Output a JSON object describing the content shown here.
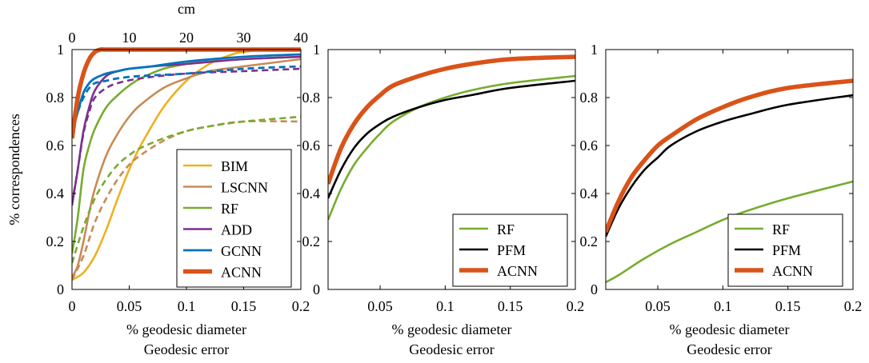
{
  "chart_data": [
    {
      "type": "line",
      "title": "",
      "xlabel": "% geodesic diameter",
      "xlabel2": "Geodesic error",
      "ylabel": "% correspondences",
      "top_axis_label": "cm",
      "top_axis_ticks": [
        "0",
        "10",
        "20",
        "30",
        "40"
      ],
      "top_axis_range": [
        0,
        40
      ],
      "xlim": [
        0,
        0.2
      ],
      "ylim": [
        0,
        1
      ],
      "x_ticks": [
        "0",
        "0.05",
        "0.1",
        "0.15",
        "0.2"
      ],
      "y_ticks": [
        "0",
        "0.2",
        "0.4",
        "0.6",
        "0.8",
        "1"
      ],
      "legend_position": "bottom-right",
      "legend": [
        "BIM",
        "LSCNN",
        "RF",
        "ADD",
        "GCNN",
        "ACNN"
      ],
      "series": [
        {
          "name": "BIM",
          "color": "#EDB120",
          "dashed": false,
          "width": 2.6,
          "x": [
            0,
            0.01,
            0.02,
            0.03,
            0.04,
            0.05,
            0.06,
            0.08,
            0.1,
            0.12,
            0.14,
            0.15,
            0.17,
            0.2
          ],
          "y": [
            0.04,
            0.07,
            0.14,
            0.25,
            0.38,
            0.5,
            0.6,
            0.76,
            0.87,
            0.94,
            0.98,
            0.99,
            1.0,
            1.0
          ]
        },
        {
          "name": "LSCNN",
          "color": "#C88A55",
          "dashed": false,
          "width": 2.6,
          "x": [
            0,
            0.005,
            0.01,
            0.015,
            0.02,
            0.03,
            0.04,
            0.05,
            0.06,
            0.08,
            0.1,
            0.12,
            0.15,
            0.2
          ],
          "y": [
            0.05,
            0.1,
            0.2,
            0.32,
            0.42,
            0.56,
            0.65,
            0.72,
            0.77,
            0.84,
            0.88,
            0.91,
            0.93,
            0.96
          ]
        },
        {
          "name": "LSCNN (dashed)",
          "color": "#C88A55",
          "dashed": true,
          "width": 2.6,
          "x": [
            0,
            0.01,
            0.02,
            0.03,
            0.04,
            0.05,
            0.06,
            0.08,
            0.1,
            0.12,
            0.15,
            0.2
          ],
          "y": [
            0.04,
            0.14,
            0.28,
            0.38,
            0.46,
            0.52,
            0.56,
            0.62,
            0.66,
            0.68,
            0.7,
            0.7
          ]
        },
        {
          "name": "RF",
          "color": "#77AC30",
          "dashed": false,
          "width": 2.6,
          "x": [
            0,
            0.005,
            0.01,
            0.015,
            0.02,
            0.03,
            0.04,
            0.05,
            0.06,
            0.08,
            0.1,
            0.12,
            0.15,
            0.2
          ],
          "y": [
            0.15,
            0.3,
            0.5,
            0.6,
            0.67,
            0.76,
            0.81,
            0.85,
            0.88,
            0.92,
            0.94,
            0.95,
            0.96,
            0.97
          ]
        },
        {
          "name": "RF (dashed)",
          "color": "#77AC30",
          "dashed": true,
          "width": 2.6,
          "x": [
            0,
            0.01,
            0.02,
            0.03,
            0.04,
            0.05,
            0.06,
            0.08,
            0.1,
            0.12,
            0.15,
            0.2
          ],
          "y": [
            0.11,
            0.26,
            0.38,
            0.46,
            0.52,
            0.56,
            0.59,
            0.63,
            0.66,
            0.68,
            0.7,
            0.72
          ]
        },
        {
          "name": "ADD",
          "color": "#7E2F8E",
          "dashed": false,
          "width": 2.6,
          "x": [
            0,
            0.005,
            0.01,
            0.015,
            0.02,
            0.03,
            0.04,
            0.05,
            0.07,
            0.1,
            0.15,
            0.2
          ],
          "y": [
            0.35,
            0.5,
            0.66,
            0.76,
            0.83,
            0.89,
            0.91,
            0.92,
            0.93,
            0.94,
            0.96,
            0.97
          ]
        },
        {
          "name": "ADD (dashed)",
          "color": "#7E2F8E",
          "dashed": true,
          "width": 2.6,
          "x": [
            0,
            0.005,
            0.01,
            0.015,
            0.02,
            0.03,
            0.04,
            0.06,
            0.1,
            0.15,
            0.2
          ],
          "y": [
            0.36,
            0.5,
            0.65,
            0.74,
            0.8,
            0.84,
            0.86,
            0.88,
            0.9,
            0.91,
            0.92
          ]
        },
        {
          "name": "GCNN",
          "color": "#0072BD",
          "dashed": false,
          "width": 2.8,
          "x": [
            0,
            0.005,
            0.01,
            0.015,
            0.02,
            0.03,
            0.04,
            0.05,
            0.07,
            0.1,
            0.15,
            0.2
          ],
          "y": [
            0.65,
            0.74,
            0.82,
            0.86,
            0.88,
            0.9,
            0.91,
            0.92,
            0.93,
            0.95,
            0.97,
            0.98
          ]
        },
        {
          "name": "GCNN (dashed)",
          "color": "#0072BD",
          "dashed": true,
          "width": 2.8,
          "x": [
            0,
            0.005,
            0.01,
            0.015,
            0.02,
            0.03,
            0.04,
            0.06,
            0.1,
            0.15,
            0.2
          ],
          "y": [
            0.66,
            0.74,
            0.8,
            0.84,
            0.86,
            0.87,
            0.88,
            0.89,
            0.9,
            0.92,
            0.93
          ]
        },
        {
          "name": "ACNN",
          "color": "#D95319",
          "dashed": false,
          "width": 5.5,
          "x": [
            0,
            0.005,
            0.01,
            0.015,
            0.02,
            0.025,
            0.03,
            0.05,
            0.1,
            0.2
          ],
          "y": [
            0.63,
            0.8,
            0.9,
            0.96,
            0.99,
            1.0,
            1.0,
            1.0,
            1.0,
            1.0
          ]
        }
      ]
    },
    {
      "type": "line",
      "title": "",
      "xlabel": "% geodesic diameter",
      "xlabel2": "Geodesic error",
      "ylabel": "",
      "xlim": [
        0.01,
        0.2
      ],
      "ylim": [
        0,
        1
      ],
      "x_ticks": [
        "0.05",
        "0.1",
        "0.15",
        "0.2"
      ],
      "y_ticks": [
        "0",
        "0.2",
        "0.4",
        "0.6",
        "0.8",
        "1"
      ],
      "legend_position": "bottom-right",
      "legend": [
        "RF",
        "PFM",
        "ACNN"
      ],
      "series": [
        {
          "name": "RF",
          "color": "#77AC30",
          "dashed": false,
          "width": 2.6,
          "x": [
            0.01,
            0.02,
            0.03,
            0.04,
            0.05,
            0.06,
            0.08,
            0.1,
            0.12,
            0.15,
            0.2
          ],
          "y": [
            0.29,
            0.42,
            0.52,
            0.59,
            0.65,
            0.7,
            0.76,
            0.8,
            0.83,
            0.86,
            0.89
          ]
        },
        {
          "name": "PFM",
          "color": "#000000",
          "dashed": false,
          "width": 2.6,
          "x": [
            0.01,
            0.02,
            0.03,
            0.04,
            0.05,
            0.06,
            0.08,
            0.1,
            0.12,
            0.15,
            0.2
          ],
          "y": [
            0.38,
            0.5,
            0.59,
            0.65,
            0.69,
            0.72,
            0.76,
            0.79,
            0.81,
            0.84,
            0.87
          ]
        },
        {
          "name": "ACNN",
          "color": "#D95319",
          "dashed": false,
          "width": 5.5,
          "x": [
            0.01,
            0.02,
            0.03,
            0.04,
            0.05,
            0.06,
            0.08,
            0.1,
            0.12,
            0.15,
            0.2
          ],
          "y": [
            0.44,
            0.59,
            0.69,
            0.76,
            0.81,
            0.85,
            0.89,
            0.92,
            0.94,
            0.96,
            0.97
          ]
        }
      ]
    },
    {
      "type": "line",
      "title": "",
      "xlabel": "% geodesic diameter",
      "xlabel2": "Geodesic error",
      "ylabel": "",
      "xlim": [
        0.01,
        0.2
      ],
      "ylim": [
        0,
        1
      ],
      "x_ticks": [
        "0.05",
        "0.1",
        "0.15",
        "0.2"
      ],
      "y_ticks": [
        "0",
        "0.2",
        "0.4",
        "0.6",
        "0.8",
        "1"
      ],
      "legend_position": "bottom-right",
      "legend": [
        "RF",
        "PFM",
        "ACNN"
      ],
      "series": [
        {
          "name": "RF",
          "color": "#77AC30",
          "dashed": false,
          "width": 2.6,
          "x": [
            0.01,
            0.02,
            0.04,
            0.06,
            0.08,
            0.1,
            0.12,
            0.15,
            0.2
          ],
          "y": [
            0.03,
            0.06,
            0.13,
            0.19,
            0.24,
            0.29,
            0.33,
            0.38,
            0.45
          ]
        },
        {
          "name": "PFM",
          "color": "#000000",
          "dashed": false,
          "width": 2.6,
          "x": [
            0.01,
            0.02,
            0.03,
            0.04,
            0.05,
            0.06,
            0.08,
            0.1,
            0.12,
            0.15,
            0.2
          ],
          "y": [
            0.22,
            0.34,
            0.43,
            0.5,
            0.55,
            0.6,
            0.66,
            0.7,
            0.73,
            0.77,
            0.81
          ]
        },
        {
          "name": "ACNN",
          "color": "#D95319",
          "dashed": false,
          "width": 5.5,
          "x": [
            0.01,
            0.02,
            0.03,
            0.04,
            0.05,
            0.06,
            0.08,
            0.1,
            0.12,
            0.15,
            0.2
          ],
          "y": [
            0.24,
            0.37,
            0.47,
            0.54,
            0.6,
            0.64,
            0.71,
            0.76,
            0.8,
            0.84,
            0.87
          ]
        }
      ]
    }
  ]
}
